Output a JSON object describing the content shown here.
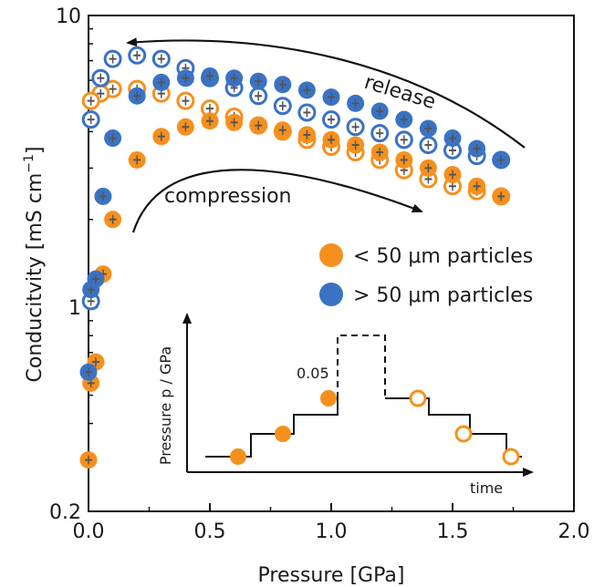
{
  "chart_data": {
    "type": "scatter",
    "xlabel": "Pressure [GPa]",
    "ylabel": "Conducitvity [mS cm",
    "ylabel_sup": "−1",
    "ylabel_end": "]",
    "xlim": [
      0,
      2.0
    ],
    "ylim": [
      0.2,
      10
    ],
    "yscale": "log",
    "x_ticks": [
      0.0,
      0.5,
      1.0,
      1.5,
      2.0
    ],
    "x_tick_labels": [
      "0.0",
      "0.5",
      "1.0",
      "1.5",
      "2.0"
    ],
    "y_ticks": [
      0.2,
      1,
      10
    ],
    "y_tick_labels": [
      "0.2",
      "1",
      "10"
    ],
    "grid": false,
    "legend_position": "right",
    "colors": {
      "orange": "#f5901e",
      "blue": "#3a72c4"
    },
    "series": [
      {
        "name": "< 50 μm particles",
        "color": "#f5901e",
        "compression": {
          "x": [
            0.0,
            0.01,
            0.03,
            0.06,
            0.1,
            0.2,
            0.3,
            0.4,
            0.5,
            0.6,
            0.7,
            0.8,
            0.9,
            1.0,
            1.1,
            1.2,
            1.3,
            1.4,
            1.5,
            1.6,
            1.7
          ],
          "y": [
            0.3,
            0.55,
            0.65,
            1.3,
            2.0,
            3.2,
            3.85,
            4.15,
            4.35,
            4.3,
            4.2,
            4.05,
            3.9,
            3.75,
            3.6,
            3.4,
            3.2,
            3.0,
            2.85,
            2.6,
            2.4
          ]
        },
        "release": {
          "x": [
            1.7,
            1.6,
            1.5,
            1.4,
            1.3,
            1.2,
            1.1,
            1.0,
            0.9,
            0.8,
            0.7,
            0.6,
            0.5,
            0.4,
            0.3,
            0.2,
            0.1,
            0.05,
            0.01
          ],
          "y": [
            2.4,
            2.5,
            2.6,
            2.75,
            2.95,
            3.2,
            3.4,
            3.55,
            3.75,
            4.0,
            4.2,
            4.5,
            4.8,
            5.1,
            5.4,
            5.6,
            5.6,
            5.4,
            5.1
          ]
        }
      },
      {
        "name": "> 50 μm particles",
        "color": "#3a72c4",
        "compression": {
          "x": [
            0.0,
            0.01,
            0.03,
            0.06,
            0.1,
            0.2,
            0.3,
            0.4,
            0.5,
            0.6,
            0.7,
            0.8,
            0.9,
            1.0,
            1.1,
            1.2,
            1.3,
            1.4,
            1.5,
            1.6,
            1.7
          ],
          "y": [
            0.6,
            1.15,
            1.25,
            2.4,
            3.8,
            5.3,
            5.9,
            6.1,
            6.2,
            6.1,
            5.95,
            5.8,
            5.55,
            5.25,
            5.0,
            4.7,
            4.4,
            4.1,
            3.8,
            3.5,
            3.2
          ]
        },
        "release": {
          "x": [
            1.7,
            1.6,
            1.5,
            1.4,
            1.3,
            1.2,
            1.1,
            1.0,
            0.9,
            0.8,
            0.7,
            0.6,
            0.5,
            0.4,
            0.3,
            0.2,
            0.1,
            0.05,
            0.01
          ],
          "y": [
            3.2,
            3.3,
            3.45,
            3.6,
            3.75,
            3.95,
            4.15,
            4.4,
            4.65,
            4.9,
            5.3,
            5.65,
            6.1,
            6.6,
            7.1,
            7.3,
            7.1,
            6.1,
            4.4
          ]
        },
        "release_low": {
          "x": 0.01,
          "y": 1.05
        }
      }
    ]
  },
  "annotations": {
    "release_label": "release",
    "compression_label": "compression"
  },
  "legend": {
    "items": [
      {
        "label": "< 50 μm particles",
        "color": "#f5901e"
      },
      {
        "label": "> 50 μm particles",
        "color": "#3a72c4"
      }
    ]
  },
  "inset": {
    "ylabel": "Pressure p / GPa",
    "xlabel": "time",
    "step_label": "0.05"
  }
}
